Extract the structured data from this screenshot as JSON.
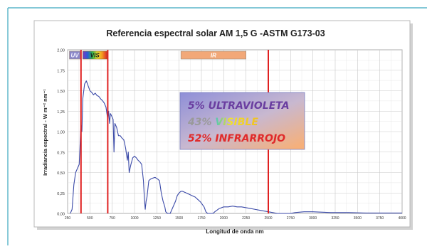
{
  "chart_data": {
    "type": "line",
    "title": "Referencia espectral solar AM 1,5 G -ASTM G173-03",
    "xlabel": "Longitud de onda nm",
    "ylabel": "Irradiancia espectral - W m⁻² nm⁻¹",
    "xlim": [
      250,
      4000
    ],
    "ylim": [
      0,
      2.0
    ],
    "x_ticks": [
      "250",
      "500",
      "750",
      "1000",
      "1250",
      "1500",
      "1750",
      "2000",
      "2250",
      "2500",
      "2750",
      "3000",
      "3250",
      "3500",
      "3750",
      "4000"
    ],
    "y_ticks": [
      "0,00",
      "0,25",
      "0,50",
      "0,75",
      "1,00",
      "1,25",
      "1,50",
      "1,75",
      "2,00"
    ],
    "grid": true,
    "series": [
      {
        "color": "#3b4aa8",
        "x": [
          280,
          300,
          320,
          340,
          360,
          380,
          400,
          410,
          420,
          440,
          460,
          480,
          500,
          520,
          540,
          560,
          580,
          600,
          620,
          640,
          660,
          680,
          700,
          710,
          720,
          730,
          740,
          760,
          770,
          780,
          800,
          820,
          840,
          860,
          880,
          900,
          920,
          930,
          940,
          950,
          960,
          980,
          1000,
          1020,
          1040,
          1060,
          1080,
          1100,
          1110,
          1120,
          1130,
          1140,
          1150,
          1160,
          1180,
          1200,
          1230,
          1260,
          1280,
          1300,
          1320,
          1340,
          1350,
          1370,
          1400,
          1420,
          1440,
          1460,
          1480,
          1500,
          1520,
          1540,
          1560,
          1580,
          1600,
          1620,
          1640,
          1660,
          1680,
          1700,
          1740,
          1780,
          1800,
          1820,
          1850,
          1880,
          1900,
          1950,
          2000,
          2050,
          2100,
          2150,
          2200,
          2250,
          2300,
          2350,
          2400,
          2450,
          2500,
          2550,
          2600,
          2650,
          2700,
          2750,
          2800,
          2900,
          3000,
          3200,
          3400,
          3600,
          3800,
          4000
        ],
        "y": [
          0.0,
          0.05,
          0.35,
          0.5,
          0.55,
          0.6,
          1.1,
          1.0,
          1.4,
          1.58,
          1.62,
          1.56,
          1.5,
          1.48,
          1.45,
          1.47,
          1.44,
          1.43,
          1.4,
          1.38,
          1.35,
          1.3,
          1.15,
          1.25,
          1.1,
          1.22,
          1.2,
          1.15,
          0.75,
          1.1,
          1.05,
          0.95,
          0.95,
          0.92,
          0.9,
          0.8,
          0.65,
          0.75,
          0.5,
          0.55,
          0.6,
          0.68,
          0.7,
          0.68,
          0.65,
          0.63,
          0.6,
          0.4,
          0.2,
          0.05,
          0.15,
          0.2,
          0.3,
          0.4,
          0.42,
          0.43,
          0.44,
          0.42,
          0.4,
          0.25,
          0.15,
          0.08,
          0.02,
          0.0,
          0.0,
          0.05,
          0.1,
          0.15,
          0.22,
          0.25,
          0.27,
          0.27,
          0.26,
          0.25,
          0.24,
          0.23,
          0.22,
          0.21,
          0.2,
          0.18,
          0.14,
          0.08,
          0.02,
          0.0,
          0.0,
          0.0,
          0.02,
          0.06,
          0.08,
          0.08,
          0.09,
          0.08,
          0.08,
          0.07,
          0.06,
          0.05,
          0.04,
          0.03,
          0.02,
          0.01,
          0.0,
          0.0,
          0.0,
          0.0,
          0.01,
          0.02,
          0.02,
          0.01,
          0.01,
          0.005,
          0.005,
          0.005
        ]
      }
    ],
    "markers": [
      {
        "x": 400,
        "color": "#e02020"
      },
      {
        "x": 700,
        "color": "#e02020"
      },
      {
        "x": 2500,
        "color": "#e02020"
      }
    ],
    "bands": [
      {
        "label": "UV",
        "x_from": 270,
        "x_to": 390,
        "fill": "#8a86c8",
        "text_color": "#f4f4ff"
      },
      {
        "label": "VIS",
        "x_from": 420,
        "x_to": 690,
        "fill": "#d9c430",
        "text_color": "#1a1a1a",
        "rainbow": true
      },
      {
        "label": "IR",
        "x_from": 1520,
        "x_to": 2250,
        "fill": "#f2a878",
        "text_color": "#ffffff"
      }
    ],
    "annotation": {
      "lines": [
        {
          "text": "5% ULTRAVIOLETA",
          "color": "#6a3ea0"
        },
        {
          "text": "43% VISIBLE",
          "color": "#9a9a9a",
          "rainbow_word": "VISIBLE"
        },
        {
          "text": "52% INFRARROJO",
          "color": "#e02a2a"
        }
      ]
    }
  }
}
